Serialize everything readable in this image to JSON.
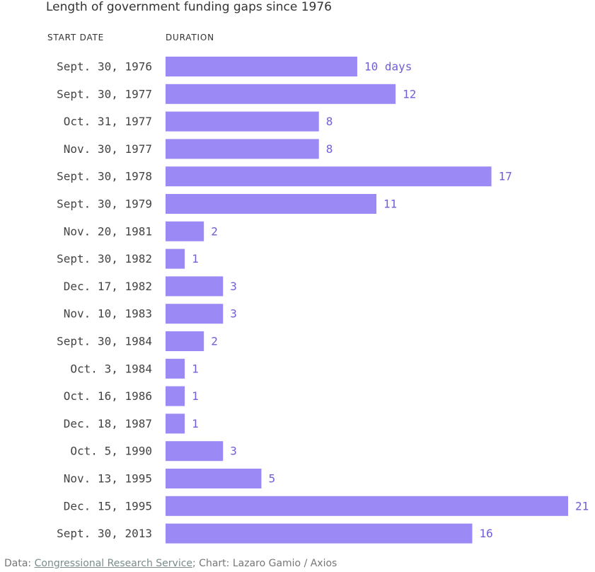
{
  "title": "Length of government funding gaps since 1976",
  "headers": {
    "start_date": "START DATE",
    "duration": "DURATION"
  },
  "colors": {
    "bar": "#9b8af5",
    "value_label": "#6f5fd8"
  },
  "chart_data": {
    "type": "bar",
    "orientation": "horizontal",
    "title": "Length of government funding gaps since 1976",
    "xlabel": "DURATION",
    "ylabel": "START DATE",
    "unit": "days",
    "grid": false,
    "categories": [
      "Sept. 30, 1976",
      "Sept. 30, 1977",
      "Oct. 31, 1977",
      "Nov. 30, 1977",
      "Sept. 30, 1978",
      "Sept. 30, 1979",
      "Nov. 20, 1981",
      "Sept. 30, 1982",
      "Dec. 17, 1982",
      "Nov. 10, 1983",
      "Sept. 30, 1984",
      "Oct. 3, 1984",
      "Oct. 16, 1986",
      "Dec. 18, 1987",
      "Oct. 5, 1990",
      "Nov. 13, 1995",
      "Dec. 15, 1995",
      "Sept. 30, 2013"
    ],
    "values": [
      10,
      12,
      8,
      8,
      17,
      11,
      2,
      1,
      3,
      3,
      2,
      1,
      1,
      1,
      3,
      5,
      21,
      16
    ],
    "value_labels": [
      "10 days",
      "12",
      "8",
      "8",
      "17",
      "11",
      "2",
      "1",
      "3",
      "3",
      "2",
      "1",
      "1",
      "1",
      "3",
      "5",
      "21",
      "16"
    ],
    "xlim": [
      0,
      21
    ]
  },
  "footer": {
    "prefix": "Data: ",
    "source_link": "Congressional Research Service",
    "suffix": "; Chart: Lazaro Gamio / Axios"
  }
}
